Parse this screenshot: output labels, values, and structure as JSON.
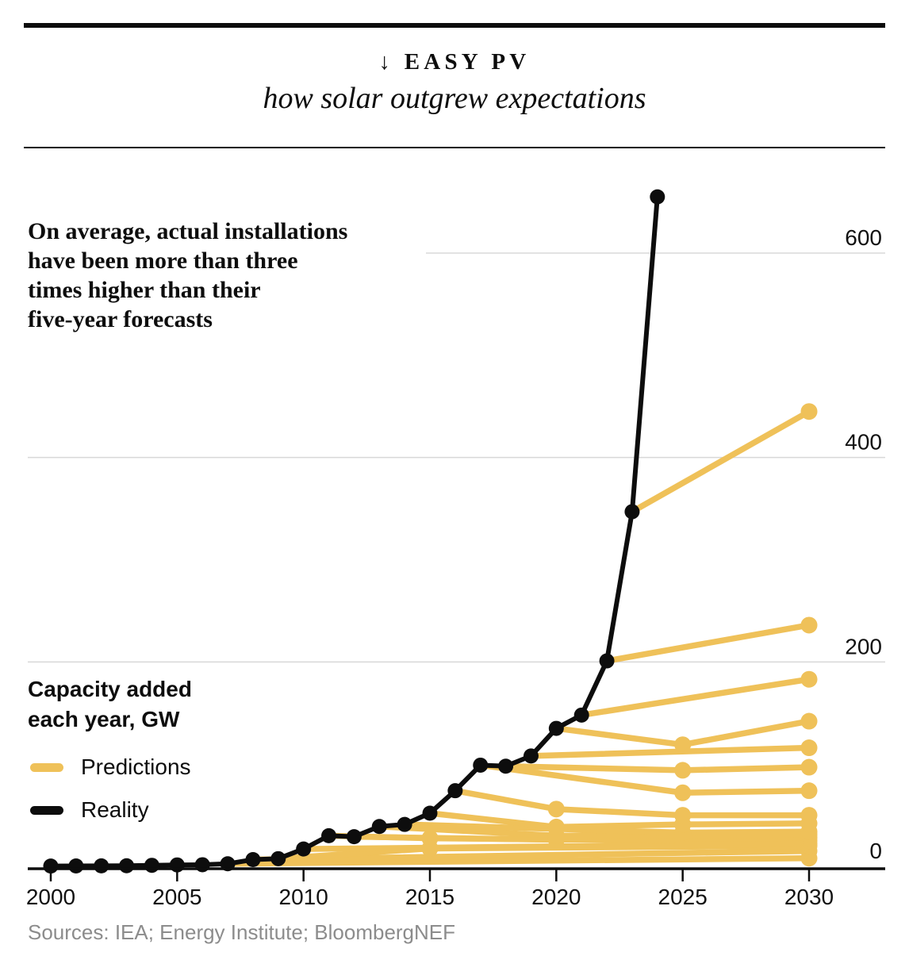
{
  "header": {
    "kicker": "↓ EASY PV",
    "subtitle": "how solar outgrew expectations"
  },
  "annotation": "On average, actual installations\nhave been more than three\ntimes higher than their\nfive-year forecasts",
  "axis_title": "Capacity added\neach year, GW",
  "legend": [
    {
      "label": "Predictions",
      "color": "#EFC159"
    },
    {
      "label": "Reality",
      "color": "#0d0d0d"
    }
  ],
  "sources": "Sources: IEA; Energy Institute; BloombergNEF",
  "chart_data": {
    "type": "line",
    "title": "how solar outgrew expectations",
    "ylabel": "Capacity added each year, GW",
    "unit": "GW",
    "x_ticks": [
      2000,
      2005,
      2010,
      2015,
      2020,
      2025,
      2030
    ],
    "y_ticks": [
      0,
      200,
      400,
      600
    ],
    "x_range": [
      2000,
      2033
    ],
    "y_range": [
      0,
      660
    ],
    "grid_color": "#d8d8d8",
    "reality": {
      "name": "Reality",
      "color": "#0d0d0d",
      "years": [
        2000,
        2001,
        2002,
        2003,
        2004,
        2005,
        2006,
        2007,
        2008,
        2009,
        2010,
        2011,
        2012,
        2013,
        2014,
        2015,
        2016,
        2017,
        2018,
        2019,
        2020,
        2021,
        2022,
        2023,
        2024
      ],
      "values": [
        0.3,
        0.4,
        0.5,
        0.6,
        1.0,
        1.4,
        1.6,
        2.5,
        6.6,
        7.5,
        17,
        30,
        29,
        39,
        41,
        52,
        74,
        99,
        98,
        108,
        135,
        148,
        201,
        347,
        655
      ]
    },
    "predictions": {
      "name": "Predictions",
      "color": "#EFC159",
      "lines": [
        [
          [
            2007,
            2.5
          ],
          [
            2030,
            8
          ]
        ],
        [
          [
            2008,
            6.6
          ],
          [
            2030,
            15
          ]
        ],
        [
          [
            2009,
            7.5
          ],
          [
            2015,
            17.5
          ],
          [
            2030,
            20
          ]
        ],
        [
          [
            2010,
            17
          ],
          [
            2030,
            22
          ]
        ],
        [
          [
            2011,
            30
          ],
          [
            2015,
            27.5
          ],
          [
            2025,
            25
          ],
          [
            2030,
            25
          ]
        ],
        [
          [
            2012,
            29
          ],
          [
            2020,
            26
          ],
          [
            2030,
            28
          ]
        ],
        [
          [
            2013,
            39
          ],
          [
            2020,
            30
          ],
          [
            2030,
            31
          ]
        ],
        [
          [
            2014,
            41
          ],
          [
            2025,
            33
          ],
          [
            2030,
            34
          ]
        ],
        [
          [
            2015,
            52
          ],
          [
            2020,
            38.5
          ],
          [
            2025,
            41
          ],
          [
            2030,
            42
          ]
        ],
        [
          [
            2016,
            74
          ],
          [
            2020,
            56
          ],
          [
            2025,
            50
          ],
          [
            2030,
            50
          ]
        ],
        [
          [
            2017,
            99
          ],
          [
            2025,
            72
          ],
          [
            2030,
            74
          ]
        ],
        [
          [
            2018,
            98
          ],
          [
            2025,
            94
          ],
          [
            2030,
            97
          ]
        ],
        [
          [
            2019,
            108
          ],
          [
            2030,
            116
          ]
        ],
        [
          [
            2020,
            135
          ],
          [
            2025,
            119
          ],
          [
            2030,
            142
          ]
        ],
        [
          [
            2021,
            148
          ],
          [
            2030,
            183
          ]
        ],
        [
          [
            2022,
            201
          ],
          [
            2030,
            236
          ]
        ],
        [
          [
            2023,
            347
          ],
          [
            2030,
            445
          ]
        ]
      ]
    }
  }
}
